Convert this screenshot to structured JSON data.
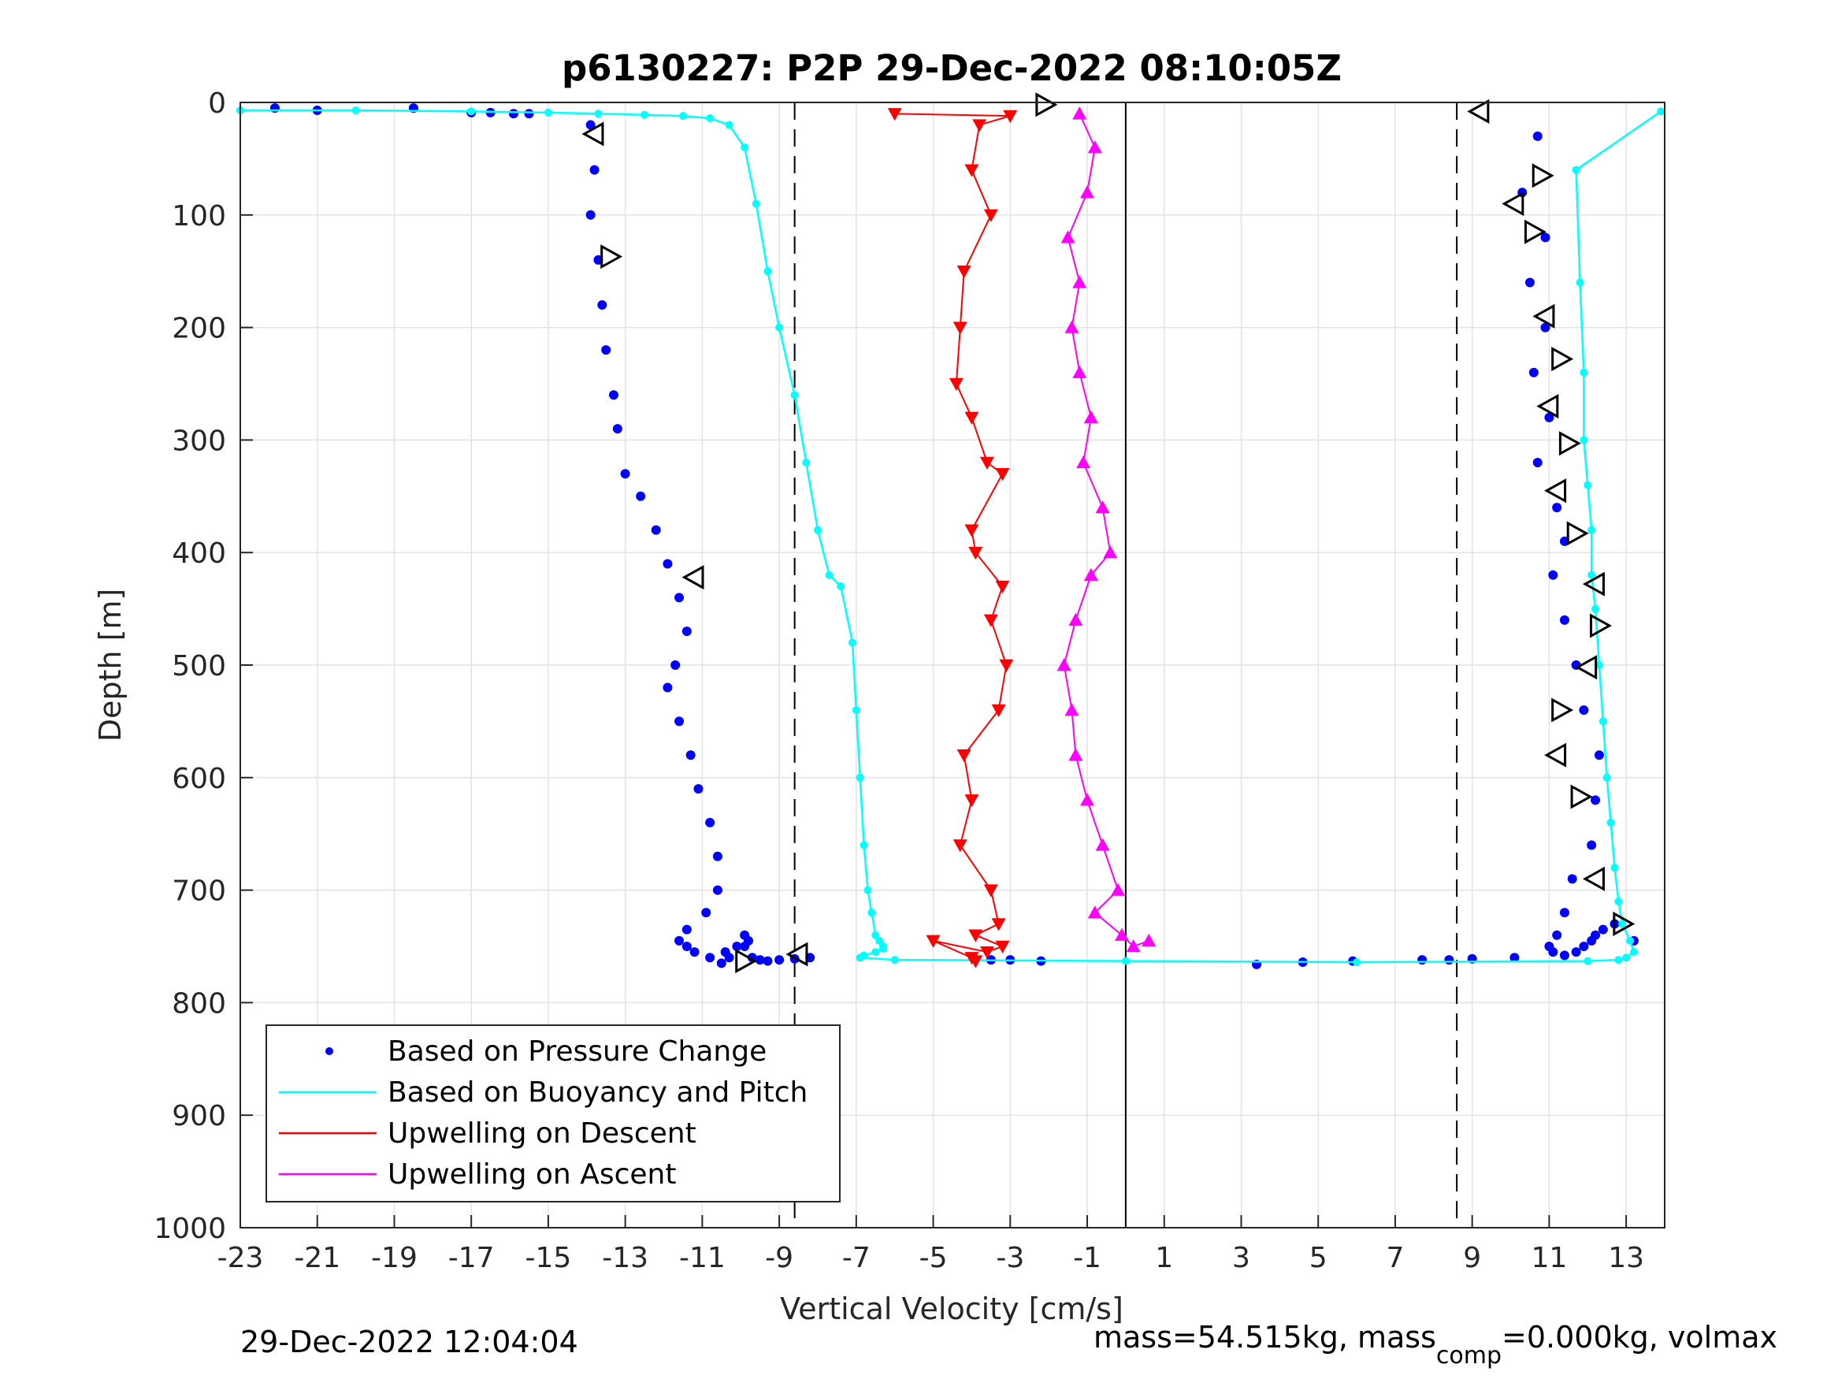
{
  "chart_data": {
    "type": "scatter",
    "title": "p6130227: P2P 29-Dec-2022 08:10:05Z",
    "xlabel": "Vertical Velocity [cm/s]",
    "ylabel": "Depth [m]",
    "xlim": [
      -23,
      14
    ],
    "ylim": [
      0,
      1000
    ],
    "y_reversed": true,
    "grid": true,
    "legend_position": "bottom-left",
    "x_ticks": [
      "-23",
      "-21",
      "-19",
      "-17",
      "-15",
      "-13",
      "-11",
      "-9",
      "-7",
      "-5",
      "-3",
      "-1",
      "1",
      "3",
      "5",
      "7",
      "9",
      "11",
      "13"
    ],
    "y_ticks": [
      "0",
      "100",
      "200",
      "300",
      "400",
      "500",
      "600",
      "700",
      "800",
      "900",
      "1000"
    ],
    "legend": [
      {
        "label": "Based on Pressure Change",
        "color": "#0000ff",
        "style": "dot"
      },
      {
        "label": "Based on Buoyancy and Pitch",
        "color": "#00ffff",
        "style": "line"
      },
      {
        "label": "Upwelling on Descent",
        "color": "#ff0000",
        "style": "line"
      },
      {
        "label": "Upwelling on Ascent",
        "color": "#ff00ff",
        "style": "line"
      }
    ],
    "reference_lines": {
      "dashed_x": [
        -8.6,
        8.6
      ],
      "solid_x": [
        0.0
      ],
      "solid_x_range": [
        0,
        762
      ]
    },
    "series": [
      {
        "name": "Based on Pressure Change",
        "color": "#0000ff",
        "marker": "dot",
        "x": [
          -22.1,
          -21,
          -18.5,
          -17,
          -16.5,
          -15.9,
          -15.5,
          -13.9,
          -13.8,
          -13.9,
          -13.7,
          -13.6,
          -13.5,
          -13.3,
          -13.2,
          -13,
          -12.6,
          -12.2,
          -11.9,
          -11.6,
          -11.4,
          -11.7,
          -11.9,
          -11.6,
          -11.3,
          -11.1,
          -10.8,
          -10.6,
          -10.6,
          -10.9,
          -11.4,
          -11.6,
          -11.4,
          -11.2,
          -10.8,
          -10.5,
          -10.3,
          -10.4,
          -10.1,
          -9.9,
          -9.8,
          -9.9,
          -9.7,
          -9.5,
          -9.3,
          -9.0,
          -8.6,
          -8.2,
          -3.5,
          -3.0,
          -2.2,
          3.4,
          4.6,
          5.9,
          7.7,
          8.4,
          9.0,
          10.1,
          10.7,
          10.3,
          10.9,
          10.5,
          10.9,
          10.6,
          11.0,
          10.7,
          11.2,
          11.4,
          11.1,
          11.4,
          11.7,
          11.9,
          12.3,
          12.2,
          12.1,
          11.6,
          11.4,
          11.2,
          11.0,
          11.1,
          11.4,
          11.7,
          11.9,
          12.1,
          12.2,
          12.4,
          12.7,
          13.2
        ],
        "y": [
          5,
          7,
          5,
          9,
          9,
          10,
          10,
          20,
          60,
          100,
          140,
          180,
          220,
          260,
          290,
          330,
          350,
          380,
          410,
          440,
          470,
          500,
          520,
          550,
          580,
          610,
          640,
          670,
          700,
          720,
          735,
          745,
          750,
          755,
          760,
          765,
          760,
          755,
          750,
          740,
          745,
          750,
          760,
          762,
          763,
          762,
          761,
          760,
          762,
          762,
          763,
          766,
          764,
          763,
          762,
          762,
          761,
          760,
          30,
          80,
          120,
          160,
          200,
          240,
          280,
          320,
          360,
          390,
          420,
          460,
          500,
          540,
          580,
          620,
          660,
          690,
          720,
          740,
          750,
          755,
          758,
          755,
          750,
          745,
          740,
          735,
          730,
          745
        ]
      },
      {
        "name": "Based on Buoyancy and Pitch",
        "color": "#00ffff",
        "marker": "line",
        "x": [
          -23,
          -20,
          -17,
          -15,
          -13.7,
          -12.5,
          -11.5,
          -10.8,
          -10.3,
          -9.9,
          -9.6,
          -9.3,
          -9.0,
          -8.6,
          -8.3,
          -8.0,
          -7.7,
          -7.4,
          -7.1,
          -7.0,
          -6.9,
          -6.8,
          -6.7,
          -6.6,
          -6.5,
          -6.4,
          -6.3,
          -6.3,
          -6.5,
          -6.8,
          -6.9,
          -6.0,
          0.0,
          6.0,
          12.0,
          12.8,
          13.0,
          13.2,
          13.1,
          12.9,
          12.8,
          12.7,
          12.6,
          12.5,
          12.4,
          12.3,
          12.2,
          12.1,
          12.1,
          12.0,
          11.9,
          11.9,
          11.8,
          11.7,
          13.9
        ],
        "y": [
          7,
          7,
          8,
          9,
          10,
          11,
          12,
          14,
          20,
          40,
          90,
          150,
          200,
          260,
          320,
          380,
          420,
          430,
          480,
          540,
          600,
          660,
          700,
          720,
          740,
          745,
          750,
          752,
          755,
          758,
          760,
          762,
          763,
          764,
          763,
          762,
          760,
          755,
          745,
          730,
          710,
          680,
          640,
          600,
          550,
          500,
          450,
          420,
          380,
          340,
          300,
          240,
          160,
          60,
          8
        ]
      },
      {
        "name": "Upwelling on Descent",
        "color": "#ff0000",
        "marker": "triangle-down",
        "x": [
          -6.0,
          -3.0,
          -3.8,
          -4.0,
          -3.5,
          -4.2,
          -4.3,
          -4.4,
          -4.0,
          -3.6,
          -3.2,
          -4.0,
          -3.9,
          -3.2,
          -3.5,
          -3.1,
          -3.3,
          -4.2,
          -4.0,
          -4.3,
          -3.5,
          -3.3,
          -3.9,
          -3.2,
          -3.6,
          -5.0,
          -4.0,
          -3.9
        ],
        "y": [
          10,
          12,
          20,
          60,
          100,
          150,
          200,
          250,
          280,
          320,
          330,
          380,
          400,
          430,
          460,
          500,
          540,
          580,
          620,
          660,
          700,
          730,
          740,
          750,
          755,
          745,
          760,
          763
        ]
      },
      {
        "name": "Upwelling on Ascent",
        "color": "#ff00ff",
        "marker": "triangle-up",
        "x": [
          -1.2,
          -0.8,
          -1.0,
          -1.5,
          -1.2,
          -1.4,
          -1.2,
          -0.9,
          -1.1,
          -0.6,
          -0.4,
          -0.9,
          -1.3,
          -1.6,
          -1.4,
          -1.3,
          -1.0,
          -0.6,
          -0.2,
          -0.8,
          -0.1,
          0.2,
          0.6
        ],
        "y": [
          10,
          40,
          80,
          120,
          160,
          200,
          240,
          280,
          320,
          360,
          400,
          420,
          460,
          500,
          540,
          580,
          620,
          660,
          700,
          720,
          740,
          750,
          745
        ]
      },
      {
        "name": "",
        "color": "#000000",
        "marker": "open-triangle",
        "x": [
          -13.8,
          -13.4,
          -11.2,
          -9.9,
          -8.5,
          -2.1,
          9.2,
          10.8,
          10.1,
          10.6,
          10.9,
          11.3,
          11.0,
          11.5,
          11.2,
          11.7,
          12.2,
          12.3,
          12.0,
          11.3,
          11.2,
          11.8,
          12.2,
          12.9
        ],
        "y": [
          28,
          137,
          422,
          763,
          757,
          2,
          8,
          65,
          90,
          115,
          190,
          228,
          270,
          303,
          345,
          383,
          428,
          465,
          502,
          540,
          580,
          617,
          690,
          730
        ]
      }
    ]
  },
  "footer": {
    "timestamp": "29-Dec-2022 12:04:04",
    "mass_text_start": "mass=54.515kg, mass",
    "mass_subscript": "comp",
    "mass_text_end": "=0.000kg, volmax"
  }
}
